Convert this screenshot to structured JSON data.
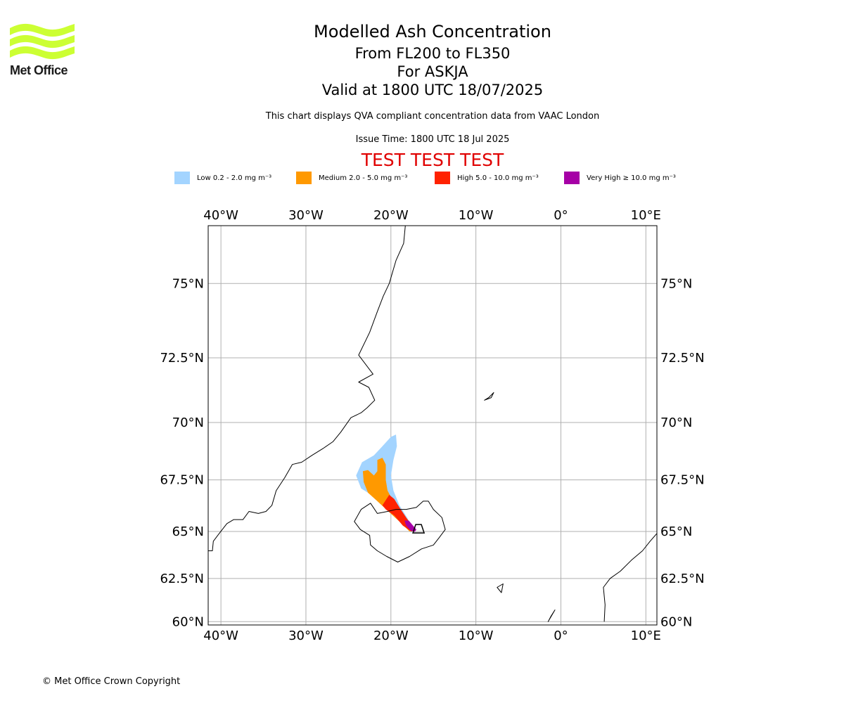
{
  "header": {
    "logo_text": "Met Office",
    "logo_color": "#ccff33",
    "title": "Modelled Ash Concentration",
    "range": "From FL200 to FL350",
    "volcano": "For ASKJA",
    "valid": "Valid at 1800 UTC 18/07/2025",
    "subtitle": "This chart displays QVA compliant concentration data from VAAC London",
    "issue_time": "Issue Time: 1800 UTC 18 Jul 2025",
    "test_banner": "TEST TEST TEST"
  },
  "legend": [
    {
      "label": "Low 0.2 - 2.0 mg m⁻³",
      "color": "#a3d4ff"
    },
    {
      "label": "Medium 2.0 - 5.0 mg m⁻³",
      "color": "#ff9900"
    },
    {
      "label": "High 5.0 - 10.0 mg m⁻³",
      "color": "#ff2200"
    },
    {
      "label": "Very High  ≥  10.0 mg m⁻³",
      "color": "#a600a6"
    }
  ],
  "map": {
    "lon_range": [
      -41.5,
      11.3
    ],
    "lat_range": [
      59.8,
      76.7
    ],
    "lon_ticks": [
      {
        "value": -40,
        "label": "40°W"
      },
      {
        "value": -30,
        "label": "30°W"
      },
      {
        "value": -20,
        "label": "20°W"
      },
      {
        "value": -10,
        "label": "10°W"
      },
      {
        "value": 0,
        "label": "0°"
      },
      {
        "value": 10,
        "label": "10°E"
      }
    ],
    "lat_ticks": [
      {
        "value": 75,
        "label": "75°N"
      },
      {
        "value": 72.5,
        "label": "72.5°N"
      },
      {
        "value": 70,
        "label": "70°N"
      },
      {
        "value": 67.5,
        "label": "67.5°N"
      },
      {
        "value": 65,
        "label": "65°N"
      },
      {
        "value": 62.5,
        "label": "62.5°N"
      },
      {
        "value": 60,
        "label": "60°N"
      }
    ],
    "volcano_location": {
      "lon": -16.75,
      "lat": 65.03
    },
    "ash_layers": [
      {
        "level": "low",
        "color": "#a3d4ff",
        "polygon": [
          [
            -24.1,
            67.7
          ],
          [
            -23.4,
            68.3
          ],
          [
            -22.0,
            68.6
          ],
          [
            -21.0,
            69.0
          ],
          [
            -20.0,
            69.4
          ],
          [
            -19.4,
            69.5
          ],
          [
            -19.3,
            69.0
          ],
          [
            -19.7,
            68.4
          ],
          [
            -20.0,
            67.7
          ],
          [
            -19.7,
            67.0
          ],
          [
            -19.0,
            66.3
          ],
          [
            -18.1,
            65.7
          ],
          [
            -17.2,
            65.0
          ],
          [
            -17.7,
            64.95
          ],
          [
            -18.5,
            65.4
          ],
          [
            -19.6,
            65.9
          ],
          [
            -21.0,
            66.4
          ],
          [
            -22.3,
            66.8
          ],
          [
            -23.5,
            67.1
          ]
        ]
      },
      {
        "level": "medium",
        "color": "#ff9900",
        "polygon": [
          [
            -23.2,
            67.4
          ],
          [
            -23.3,
            67.9
          ],
          [
            -22.7,
            67.95
          ],
          [
            -22.0,
            67.7
          ],
          [
            -21.6,
            67.9
          ],
          [
            -21.6,
            68.4
          ],
          [
            -21.0,
            68.5
          ],
          [
            -20.6,
            68.2
          ],
          [
            -20.6,
            67.5
          ],
          [
            -20.4,
            67.0
          ],
          [
            -19.6,
            66.4
          ],
          [
            -18.7,
            65.9
          ],
          [
            -17.7,
            65.3
          ],
          [
            -17.2,
            65.0
          ],
          [
            -17.8,
            65.0
          ],
          [
            -19.0,
            65.5
          ],
          [
            -20.3,
            66.0
          ],
          [
            -21.6,
            66.5
          ],
          [
            -22.7,
            66.9
          ]
        ]
      },
      {
        "level": "high",
        "color": "#ff2200",
        "polygon": [
          [
            -21.0,
            66.3
          ],
          [
            -20.2,
            66.8
          ],
          [
            -19.6,
            66.6
          ],
          [
            -19.0,
            66.2
          ],
          [
            -18.2,
            65.7
          ],
          [
            -17.5,
            65.3
          ],
          [
            -17.2,
            65.05
          ],
          [
            -17.6,
            65.0
          ],
          [
            -18.6,
            65.3
          ],
          [
            -19.6,
            65.8
          ],
          [
            -20.6,
            66.1
          ]
        ]
      },
      {
        "level": "very-high",
        "color": "#a600a6",
        "polygon": [
          [
            -18.4,
            65.55
          ],
          [
            -17.9,
            65.55
          ],
          [
            -17.4,
            65.3
          ],
          [
            -17.0,
            65.1
          ],
          [
            -17.2,
            64.98
          ],
          [
            -17.7,
            65.05
          ],
          [
            -18.2,
            65.3
          ]
        ]
      }
    ],
    "coastlines": [
      {
        "name": "greenland",
        "closed": false,
        "points": [
          [
            -41.5,
            64.0
          ],
          [
            -41.0,
            64.0
          ],
          [
            -40.9,
            64.5
          ],
          [
            -40.2,
            64.9
          ],
          [
            -39.3,
            65.4
          ],
          [
            -38.5,
            65.6
          ],
          [
            -37.4,
            65.6
          ],
          [
            -36.7,
            66.0
          ],
          [
            -35.6,
            65.9
          ],
          [
            -34.7,
            66.0
          ],
          [
            -34.0,
            66.3
          ],
          [
            -33.5,
            67.0
          ],
          [
            -32.5,
            67.6
          ],
          [
            -31.6,
            68.2
          ],
          [
            -30.5,
            68.3
          ],
          [
            -29.3,
            68.6
          ],
          [
            -28.0,
            68.9
          ],
          [
            -26.8,
            69.2
          ],
          [
            -25.9,
            69.6
          ],
          [
            -24.7,
            70.2
          ],
          [
            -23.5,
            70.4
          ],
          [
            -22.8,
            70.6
          ],
          [
            -21.9,
            70.9
          ],
          [
            -22.6,
            71.4
          ],
          [
            -23.8,
            71.6
          ],
          [
            -22.1,
            71.9
          ],
          [
            -23.8,
            72.6
          ],
          [
            -22.5,
            73.4
          ],
          [
            -21.6,
            74.1
          ],
          [
            -20.9,
            74.6
          ],
          [
            -20.2,
            75.0
          ],
          [
            -19.4,
            75.7
          ],
          [
            -18.5,
            76.2
          ],
          [
            -18.3,
            76.7
          ]
        ]
      },
      {
        "name": "iceland",
        "closed": true,
        "points": [
          [
            -24.3,
            65.5
          ],
          [
            -23.6,
            65.1
          ],
          [
            -22.5,
            64.8
          ],
          [
            -22.4,
            64.3
          ],
          [
            -21.6,
            64.0
          ],
          [
            -20.5,
            63.7
          ],
          [
            -19.2,
            63.4
          ],
          [
            -17.8,
            63.7
          ],
          [
            -16.4,
            64.1
          ],
          [
            -15.0,
            64.3
          ],
          [
            -14.3,
            64.7
          ],
          [
            -13.6,
            65.1
          ],
          [
            -14.0,
            65.7
          ],
          [
            -15.0,
            66.1
          ],
          [
            -15.6,
            66.5
          ],
          [
            -16.2,
            66.5
          ],
          [
            -17.0,
            66.2
          ],
          [
            -18.2,
            66.1
          ],
          [
            -19.4,
            66.1
          ],
          [
            -20.4,
            66.0
          ],
          [
            -21.6,
            65.9
          ],
          [
            -22.4,
            66.4
          ],
          [
            -23.5,
            66.1
          ]
        ]
      },
      {
        "name": "jan-mayen",
        "closed": true,
        "points": [
          [
            -9.0,
            70.9
          ],
          [
            -8.2,
            71.0
          ],
          [
            -7.9,
            71.2
          ],
          [
            -8.5,
            71.0
          ]
        ]
      },
      {
        "name": "faroe-west",
        "closed": true,
        "points": [
          [
            -7.5,
            62.0
          ],
          [
            -6.8,
            62.2
          ],
          [
            -7.0,
            61.7
          ]
        ]
      },
      {
        "name": "shetland",
        "closed": true,
        "points": [
          [
            -1.5,
            60.0
          ],
          [
            -0.7,
            60.7
          ],
          [
            -1.2,
            60.3
          ]
        ]
      },
      {
        "name": "norway",
        "closed": false,
        "points": [
          [
            5.1,
            60.0
          ],
          [
            5.2,
            61.0
          ],
          [
            5.0,
            62.0
          ],
          [
            5.8,
            62.5
          ],
          [
            7.0,
            62.9
          ],
          [
            8.3,
            63.5
          ],
          [
            9.6,
            64.0
          ],
          [
            10.5,
            64.5
          ],
          [
            11.3,
            64.9
          ]
        ]
      }
    ]
  },
  "footer": {
    "copyright": "© Met Office Crown Copyright"
  }
}
